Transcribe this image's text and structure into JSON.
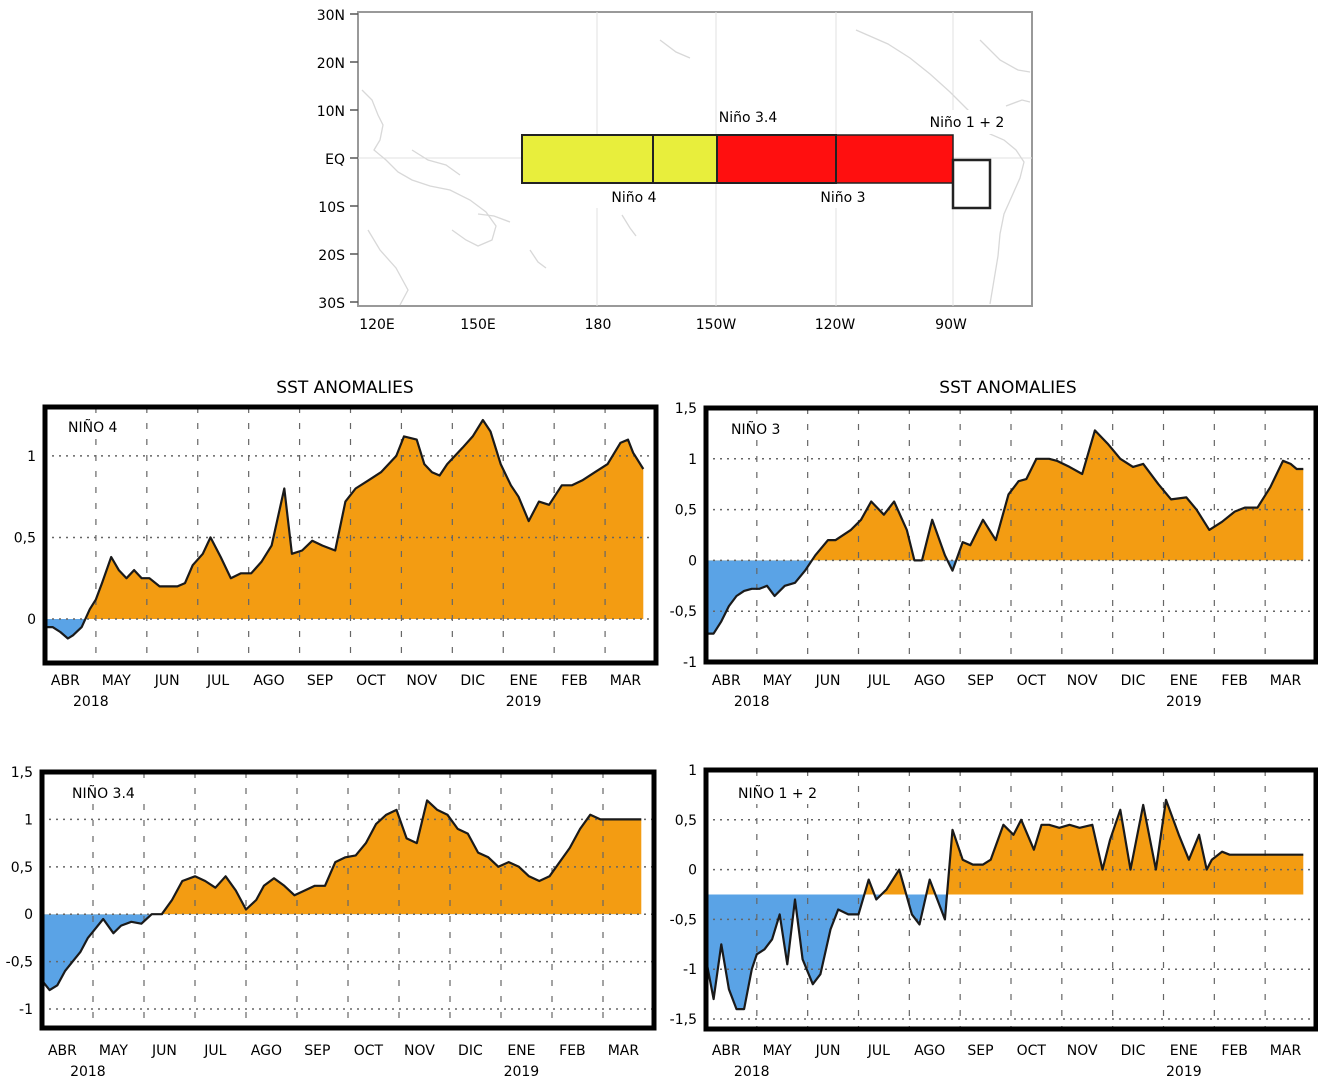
{
  "map": {
    "lat_labels": [
      "30N",
      "20N",
      "10N",
      "EQ",
      "10S",
      "20S",
      "30S"
    ],
    "lon_labels": [
      "120E",
      "150E",
      "180",
      "150W",
      "120W",
      "90W"
    ],
    "regions": {
      "nino4": {
        "label": "Niño 4",
        "color": "#e8ee3c"
      },
      "nino34": {
        "label": "Niño 3.4"
      },
      "nino3": {
        "label": "Niño 3",
        "color": "#ff0f0f"
      },
      "nino12": {
        "label": "Niño 1 + 2"
      }
    }
  },
  "section_titles": [
    "SST ANOMALIES",
    "SST ANOMALIES"
  ],
  "months": [
    "ABR",
    "MAY",
    "JUN",
    "JUL",
    "AGO",
    "SEP",
    "OCT",
    "NOV",
    "DIC",
    "ENE",
    "FEB",
    "MAR"
  ],
  "years": [
    "2018",
    "2019"
  ],
  "colors": {
    "positive": "#f39c12",
    "negative": "#5aa3e6",
    "line": "#1a1a1a",
    "frame": "#000000"
  },
  "chart_data": [
    {
      "type": "area",
      "title": "SST ANOMALIES",
      "label": "NIÑO 4",
      "ylim": [
        -0.27,
        1.3
      ],
      "yticks": [
        0,
        0.5,
        1
      ],
      "yticklabels": [
        "0",
        "0,5",
        "1"
      ],
      "baseline": 0,
      "x": [
        0,
        0.15,
        0.3,
        0.45,
        0.55,
        0.72,
        0.88,
        1.0,
        1.12,
        1.3,
        1.45,
        1.6,
        1.75,
        1.9,
        2.05,
        2.25,
        2.45,
        2.6,
        2.75,
        2.9,
        3.1,
        3.25,
        3.45,
        3.65,
        3.85,
        4.05,
        4.25,
        4.45,
        4.7,
        4.85,
        5.05,
        5.25,
        5.45,
        5.7,
        5.9,
        6.1,
        6.35,
        6.6,
        6.9,
        7.05,
        7.3,
        7.45,
        7.6,
        7.75,
        7.9,
        8.05,
        8.2,
        8.4,
        8.6,
        8.75,
        8.95,
        9.15,
        9.3,
        9.5,
        9.7,
        9.9,
        10.15,
        10.35,
        10.55,
        10.8,
        11.05,
        11.3,
        11.45,
        11.55,
        11.75
      ],
      "y": [
        -0.05,
        -0.05,
        -0.08,
        -0.12,
        -0.1,
        -0.05,
        0.06,
        0.12,
        0.22,
        0.38,
        0.3,
        0.25,
        0.3,
        0.25,
        0.25,
        0.2,
        0.2,
        0.2,
        0.22,
        0.33,
        0.4,
        0.5,
        0.38,
        0.25,
        0.28,
        0.28,
        0.35,
        0.45,
        0.8,
        0.4,
        0.42,
        0.48,
        0.45,
        0.42,
        0.72,
        0.8,
        0.85,
        0.9,
        1.0,
        1.12,
        1.1,
        0.95,
        0.9,
        0.88,
        0.95,
        1.0,
        1.05,
        1.12,
        1.22,
        1.15,
        0.95,
        0.82,
        0.75,
        0.6,
        0.72,
        0.7,
        0.82,
        0.82,
        0.85,
        0.9,
        0.95,
        1.08,
        1.1,
        1.02,
        0.92
      ]
    },
    {
      "type": "area",
      "title": "SST ANOMALIES",
      "label": "NIÑO 3",
      "ylim": [
        -1,
        1.5
      ],
      "yticks": [
        -1,
        -0.5,
        0,
        0.5,
        1,
        1.5
      ],
      "yticklabels": [
        "-1",
        "-0,5",
        "0",
        "0,5",
        "1",
        "1,5"
      ],
      "baseline": 0,
      "x": [
        0,
        0.15,
        0.3,
        0.45,
        0.6,
        0.75,
        0.9,
        1.05,
        1.2,
        1.35,
        1.55,
        1.75,
        1.95,
        2.15,
        2.4,
        2.55,
        2.85,
        3.05,
        3.25,
        3.5,
        3.7,
        3.95,
        4.1,
        4.25,
        4.45,
        4.7,
        4.85,
        5.05,
        5.2,
        5.45,
        5.7,
        5.95,
        6.15,
        6.3,
        6.5,
        6.75,
        6.9,
        7.15,
        7.4,
        7.65,
        7.9,
        8.15,
        8.4,
        8.6,
        8.9,
        9.15,
        9.45,
        9.65,
        9.9,
        10.15,
        10.4,
        10.6,
        10.85,
        11.1,
        11.35,
        11.5,
        11.62,
        11.75
      ],
      "y": [
        -0.72,
        -0.72,
        -0.6,
        -0.45,
        -0.35,
        -0.3,
        -0.28,
        -0.28,
        -0.25,
        -0.35,
        -0.25,
        -0.22,
        -0.1,
        0.05,
        0.2,
        0.2,
        0.3,
        0.4,
        0.58,
        0.45,
        0.58,
        0.3,
        0.0,
        0.0,
        0.4,
        0.05,
        -0.1,
        0.18,
        0.15,
        0.4,
        0.2,
        0.65,
        0.78,
        0.8,
        1.0,
        1.0,
        0.98,
        0.92,
        0.85,
        1.28,
        1.15,
        1.0,
        0.92,
        0.95,
        0.75,
        0.6,
        0.62,
        0.5,
        0.3,
        0.38,
        0.48,
        0.52,
        0.52,
        0.72,
        0.98,
        0.95,
        0.9,
        0.9
      ]
    },
    {
      "type": "area",
      "title": "",
      "label": "NIÑO 3.4",
      "ylim": [
        -1.2,
        1.5
      ],
      "yticks": [
        -1,
        -0.5,
        0,
        0.5,
        1,
        1.5
      ],
      "yticklabels": [
        "-1",
        "-0,5",
        "0",
        "0,5",
        "1",
        "1,5"
      ],
      "baseline": 0,
      "x": [
        0,
        0.15,
        0.3,
        0.45,
        0.6,
        0.75,
        0.9,
        1.05,
        1.2,
        1.4,
        1.55,
        1.75,
        1.95,
        2.15,
        2.35,
        2.55,
        2.75,
        3.0,
        3.2,
        3.4,
        3.6,
        3.8,
        4.0,
        4.2,
        4.35,
        4.55,
        4.75,
        4.95,
        5.15,
        5.35,
        5.55,
        5.75,
        5.95,
        6.15,
        6.35,
        6.55,
        6.75,
        6.95,
        7.15,
        7.35,
        7.55,
        7.75,
        7.95,
        8.15,
        8.35,
        8.55,
        8.75,
        8.95,
        9.15,
        9.35,
        9.55,
        9.75,
        9.95,
        10.15,
        10.35,
        10.55,
        10.75,
        10.95,
        11.15,
        11.35,
        11.55,
        11.75
      ],
      "y": [
        -0.7,
        -0.8,
        -0.75,
        -0.6,
        -0.5,
        -0.4,
        -0.25,
        -0.15,
        -0.05,
        -0.2,
        -0.12,
        -0.08,
        -0.1,
        0.0,
        0.0,
        0.15,
        0.35,
        0.4,
        0.35,
        0.28,
        0.4,
        0.25,
        0.05,
        0.15,
        0.3,
        0.38,
        0.3,
        0.2,
        0.25,
        0.3,
        0.3,
        0.55,
        0.6,
        0.62,
        0.75,
        0.95,
        1.05,
        1.1,
        0.8,
        0.75,
        1.2,
        1.1,
        1.05,
        0.9,
        0.85,
        0.65,
        0.6,
        0.5,
        0.55,
        0.5,
        0.4,
        0.35,
        0.4,
        0.55,
        0.7,
        0.9,
        1.05,
        1.0,
        1.0,
        1.0,
        1.0,
        1.0
      ]
    },
    {
      "type": "area",
      "title": "",
      "label": "NIÑO 1 + 2",
      "ylim": [
        -1.6,
        1
      ],
      "yticks": [
        -1.5,
        -1,
        -0.5,
        0,
        0.5,
        1
      ],
      "yticklabels": [
        "-1,5",
        "-1",
        "-0,5",
        "0",
        "0,5",
        "1"
      ],
      "baseline": -0.25,
      "x": [
        0,
        0.15,
        0.3,
        0.45,
        0.6,
        0.75,
        0.9,
        1.0,
        1.15,
        1.3,
        1.45,
        1.6,
        1.75,
        1.9,
        2.1,
        2.25,
        2.45,
        2.6,
        2.8,
        3.0,
        3.2,
        3.35,
        3.55,
        3.8,
        4.05,
        4.2,
        4.4,
        4.55,
        4.7,
        4.85,
        5.05,
        5.25,
        5.45,
        5.6,
        5.85,
        6.05,
        6.2,
        6.45,
        6.6,
        6.75,
        6.95,
        7.15,
        7.35,
        7.6,
        7.8,
        7.95,
        8.15,
        8.35,
        8.6,
        8.85,
        9.05,
        9.3,
        9.5,
        9.7,
        9.85,
        9.95,
        10.15,
        10.3,
        10.45,
        10.6,
        10.75,
        10.9,
        11.05,
        11.2,
        11.35,
        11.5,
        11.65,
        11.75
      ],
      "y": [
        -0.9,
        -1.3,
        -0.75,
        -1.2,
        -1.4,
        -1.4,
        -1.0,
        -0.85,
        -0.8,
        -0.7,
        -0.45,
        -0.95,
        -0.3,
        -0.9,
        -1.15,
        -1.05,
        -0.6,
        -0.4,
        -0.45,
        -0.45,
        -0.1,
        -0.3,
        -0.2,
        0.0,
        -0.45,
        -0.55,
        -0.1,
        -0.3,
        -0.5,
        0.4,
        0.1,
        0.05,
        0.05,
        0.1,
        0.45,
        0.35,
        0.5,
        0.2,
        0.45,
        0.45,
        0.42,
        0.45,
        0.42,
        0.45,
        0.0,
        0.3,
        0.6,
        0.0,
        0.65,
        0.0,
        0.7,
        0.35,
        0.1,
        0.35,
        0.0,
        0.1,
        0.18,
        0.15,
        0.15,
        0.15,
        0.15,
        0.15,
        0.15,
        0.15,
        0.15,
        0.15,
        0.15,
        0.15
      ]
    }
  ]
}
